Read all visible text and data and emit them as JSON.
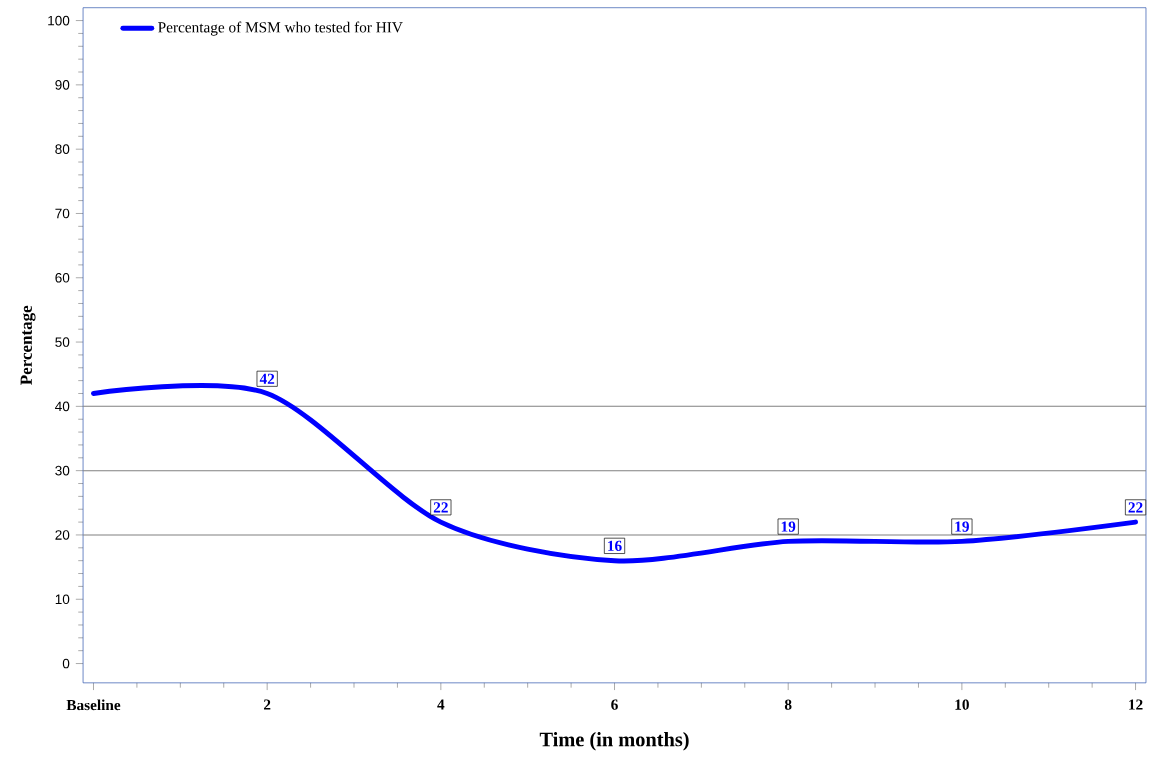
{
  "chart_data": {
    "type": "line",
    "xlabel": "Time (in months)",
    "ylabel": "Percentage",
    "x": [
      0,
      2,
      4,
      6,
      8,
      10,
      12
    ],
    "series": [
      {
        "name": "Percentage of MSM who tested for HIV",
        "color": "#0000ff",
        "values": [
          42,
          42,
          22,
          16,
          19,
          19,
          22
        ],
        "value_labels": [
          null,
          "42",
          "22",
          "16",
          "19",
          "19",
          "22"
        ]
      }
    ],
    "xlim": [
      -0.12,
      12.12
    ],
    "ylim": [
      -3,
      102
    ],
    "xticks": [
      {
        "value": 0,
        "label": "Baseline"
      },
      2,
      4,
      6,
      8,
      10,
      12
    ],
    "yticks": [
      0,
      10,
      20,
      30,
      40,
      50,
      60,
      70,
      80,
      90,
      100
    ],
    "ref_lines": [
      {
        "axis": "y",
        "value": 20,
        "color": "#808080"
      },
      {
        "axis": "y",
        "value": 30,
        "color": "#808080"
      },
      {
        "axis": "y",
        "value": 40,
        "color": "#808080"
      }
    ],
    "grid": false,
    "legend": "top left",
    "marker": "none",
    "line_style": "solid"
  }
}
